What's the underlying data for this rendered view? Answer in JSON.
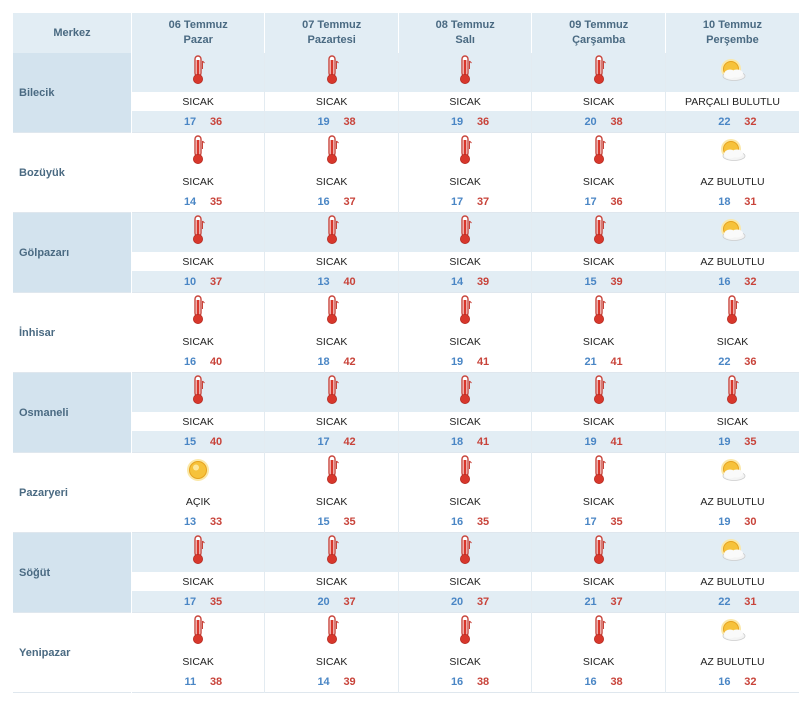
{
  "header": {
    "merkez": "Merkez",
    "days": [
      {
        "date": "06 Temmuz",
        "weekday": "Pazar"
      },
      {
        "date": "07 Temmuz",
        "weekday": "Pazartesi"
      },
      {
        "date": "08 Temmuz",
        "weekday": "Salı"
      },
      {
        "date": "09 Temmuz",
        "weekday": "Çarşamba"
      },
      {
        "date": "10 Temmuz",
        "weekday": "Perşembe"
      }
    ]
  },
  "colors": {
    "header_bg": "#e2edf4",
    "low_temp": "#4a86c5",
    "high_temp": "#c8433a",
    "city_text": "#4a6a82"
  },
  "cities": [
    {
      "name": "Bilecik",
      "shaded": true,
      "days": [
        {
          "icon": "thermometer-hot-icon",
          "desc": "SICAK",
          "low": "17",
          "high": "36"
        },
        {
          "icon": "thermometer-hot-icon",
          "desc": "SICAK",
          "low": "19",
          "high": "38"
        },
        {
          "icon": "thermometer-hot-icon",
          "desc": "SICAK",
          "low": "19",
          "high": "36"
        },
        {
          "icon": "thermometer-hot-icon",
          "desc": "SICAK",
          "low": "20",
          "high": "38"
        },
        {
          "icon": "sun-cloud-icon",
          "desc": "PARÇALI BULUTLU",
          "low": "22",
          "high": "32"
        }
      ]
    },
    {
      "name": "Bozüyük",
      "shaded": false,
      "days": [
        {
          "icon": "thermometer-hot-icon",
          "desc": "SICAK",
          "low": "14",
          "high": "35"
        },
        {
          "icon": "thermometer-hot-icon",
          "desc": "SICAK",
          "low": "16",
          "high": "37"
        },
        {
          "icon": "thermometer-hot-icon",
          "desc": "SICAK",
          "low": "17",
          "high": "37"
        },
        {
          "icon": "thermometer-hot-icon",
          "desc": "SICAK",
          "low": "17",
          "high": "36"
        },
        {
          "icon": "sun-cloud-icon",
          "desc": "AZ BULUTLU",
          "low": "18",
          "high": "31"
        }
      ]
    },
    {
      "name": "Gölpazarı",
      "shaded": true,
      "days": [
        {
          "icon": "thermometer-hot-icon",
          "desc": "SICAK",
          "low": "10",
          "high": "37"
        },
        {
          "icon": "thermometer-hot-icon",
          "desc": "SICAK",
          "low": "13",
          "high": "40"
        },
        {
          "icon": "thermometer-hot-icon",
          "desc": "SICAK",
          "low": "14",
          "high": "39"
        },
        {
          "icon": "thermometer-hot-icon",
          "desc": "SICAK",
          "low": "15",
          "high": "39"
        },
        {
          "icon": "sun-cloud-icon",
          "desc": "AZ BULUTLU",
          "low": "16",
          "high": "32"
        }
      ]
    },
    {
      "name": "İnhisar",
      "shaded": false,
      "days": [
        {
          "icon": "thermometer-hot-icon",
          "desc": "SICAK",
          "low": "16",
          "high": "40"
        },
        {
          "icon": "thermometer-hot-icon",
          "desc": "SICAK",
          "low": "18",
          "high": "42"
        },
        {
          "icon": "thermometer-hot-icon",
          "desc": "SICAK",
          "low": "19",
          "high": "41"
        },
        {
          "icon": "thermometer-hot-icon",
          "desc": "SICAK",
          "low": "21",
          "high": "41"
        },
        {
          "icon": "thermometer-hot-icon",
          "desc": "SICAK",
          "low": "22",
          "high": "36"
        }
      ]
    },
    {
      "name": "Osmaneli",
      "shaded": true,
      "days": [
        {
          "icon": "thermometer-hot-icon",
          "desc": "SICAK",
          "low": "15",
          "high": "40"
        },
        {
          "icon": "thermometer-hot-icon",
          "desc": "SICAK",
          "low": "17",
          "high": "42"
        },
        {
          "icon": "thermometer-hot-icon",
          "desc": "SICAK",
          "low": "18",
          "high": "41"
        },
        {
          "icon": "thermometer-hot-icon",
          "desc": "SICAK",
          "low": "19",
          "high": "41"
        },
        {
          "icon": "thermometer-hot-icon",
          "desc": "SICAK",
          "low": "19",
          "high": "35"
        }
      ]
    },
    {
      "name": "Pazaryeri",
      "shaded": false,
      "days": [
        {
          "icon": "sun-icon",
          "desc": "AÇIK",
          "low": "13",
          "high": "33"
        },
        {
          "icon": "thermometer-hot-icon",
          "desc": "SICAK",
          "low": "15",
          "high": "35"
        },
        {
          "icon": "thermometer-hot-icon",
          "desc": "SICAK",
          "low": "16",
          "high": "35"
        },
        {
          "icon": "thermometer-hot-icon",
          "desc": "SICAK",
          "low": "17",
          "high": "35"
        },
        {
          "icon": "sun-cloud-icon",
          "desc": "AZ BULUTLU",
          "low": "19",
          "high": "30"
        }
      ]
    },
    {
      "name": "Söğüt",
      "shaded": true,
      "days": [
        {
          "icon": "thermometer-hot-icon",
          "desc": "SICAK",
          "low": "17",
          "high": "35"
        },
        {
          "icon": "thermometer-hot-icon",
          "desc": "SICAK",
          "low": "20",
          "high": "37"
        },
        {
          "icon": "thermometer-hot-icon",
          "desc": "SICAK",
          "low": "20",
          "high": "37"
        },
        {
          "icon": "thermometer-hot-icon",
          "desc": "SICAK",
          "low": "21",
          "high": "37"
        },
        {
          "icon": "sun-cloud-icon",
          "desc": "AZ BULUTLU",
          "low": "22",
          "high": "31"
        }
      ]
    },
    {
      "name": "Yenipazar",
      "shaded": false,
      "days": [
        {
          "icon": "thermometer-hot-icon",
          "desc": "SICAK",
          "low": "11",
          "high": "38"
        },
        {
          "icon": "thermometer-hot-icon",
          "desc": "SICAK",
          "low": "14",
          "high": "39"
        },
        {
          "icon": "thermometer-hot-icon",
          "desc": "SICAK",
          "low": "16",
          "high": "38"
        },
        {
          "icon": "thermometer-hot-icon",
          "desc": "SICAK",
          "low": "16",
          "high": "38"
        },
        {
          "icon": "sun-cloud-icon",
          "desc": "AZ BULUTLU",
          "low": "16",
          "high": "32"
        }
      ]
    }
  ]
}
